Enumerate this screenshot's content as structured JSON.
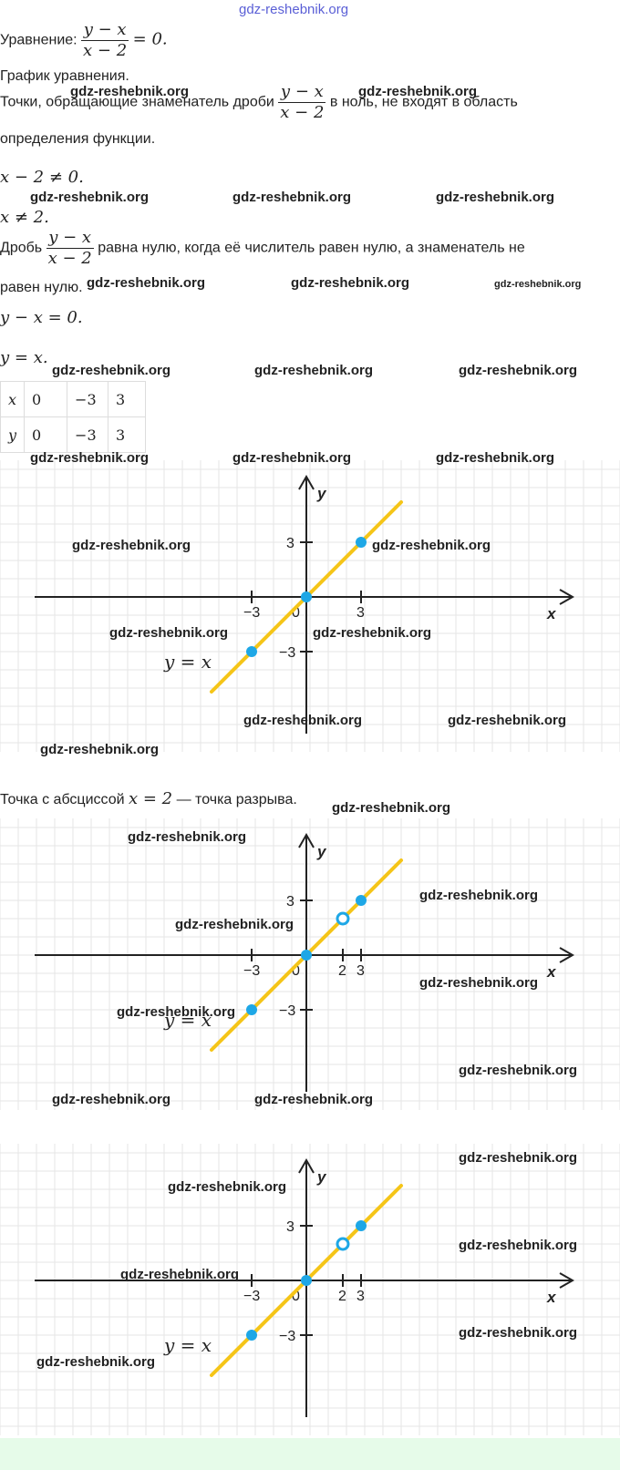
{
  "watermark": "gdz-reshebnik.org",
  "lines": {
    "equation_label": "Уравнение:",
    "eq_num": "y − x",
    "eq_den": "x − 2",
    "eq_tail": "= 0.",
    "graph_title": "График уравнения.",
    "points_a": "Точки, обращающие знаменатель дроби",
    "points_b": "в ноль, не входят в область",
    "points_c": "определения функции.",
    "ineq1": "x − 2 ≠ 0.",
    "ineq2": "x ≠ 2.",
    "frac_a": "Дробь",
    "frac_b": "равна нулю, когда её числитель равен нулю, а знаменатель не",
    "frac_c": "равен нулю.",
    "eq_y1": "y − x = 0.",
    "eq_y2": "y = x.",
    "break_a": "Точка с абсциссой",
    "break_math": "x = 2",
    "break_b": "— точка разрыва."
  },
  "table": {
    "rows": [
      {
        "head": "x",
        "cells": [
          "0",
          "−3",
          "3"
        ]
      },
      {
        "head": "y",
        "cells": [
          "0",
          "−3",
          "3"
        ]
      }
    ]
  },
  "graphs": [
    {
      "id": "graph-1",
      "has_gap": false
    },
    {
      "id": "graph-2",
      "has_gap": true
    },
    {
      "id": "graph-3",
      "has_gap": true
    }
  ],
  "chart_data": [
    {
      "type": "line",
      "axis_x_label": "x",
      "axis_y_label": "y",
      "line_label": "y = x",
      "x_ticks": [
        "−3",
        "0",
        "3"
      ],
      "y_ticks": [
        "3",
        "−3"
      ],
      "points": [
        {
          "x": -3,
          "y": -3
        },
        {
          "x": 0,
          "y": 0
        },
        {
          "x": 3,
          "y": 3
        }
      ],
      "open_points": []
    },
    {
      "type": "line",
      "axis_x_label": "x",
      "axis_y_label": "y",
      "line_label": "y = x",
      "x_ticks": [
        "−3",
        "0",
        "2",
        "3"
      ],
      "y_ticks": [
        "3",
        "−3"
      ],
      "points": [
        {
          "x": -3,
          "y": -3
        },
        {
          "x": 0,
          "y": 0
        },
        {
          "x": 3,
          "y": 3
        }
      ],
      "open_points": [
        {
          "x": 2,
          "y": 2
        }
      ]
    },
    {
      "type": "line",
      "axis_x_label": "x",
      "axis_y_label": "y",
      "line_label": "y = x",
      "x_ticks": [
        "−3",
        "0",
        "2",
        "3"
      ],
      "y_ticks": [
        "3",
        "−3"
      ],
      "points": [
        {
          "x": -3,
          "y": -3
        },
        {
          "x": 0,
          "y": 0
        },
        {
          "x": 3,
          "y": 3
        }
      ],
      "open_points": [
        {
          "x": 2,
          "y": 2
        }
      ]
    }
  ],
  "colors": {
    "line": "#f5c518",
    "point": "#1ea7e6",
    "grid": "#e6e6e6",
    "axis": "#222222",
    "band": "#e6fbe9"
  }
}
